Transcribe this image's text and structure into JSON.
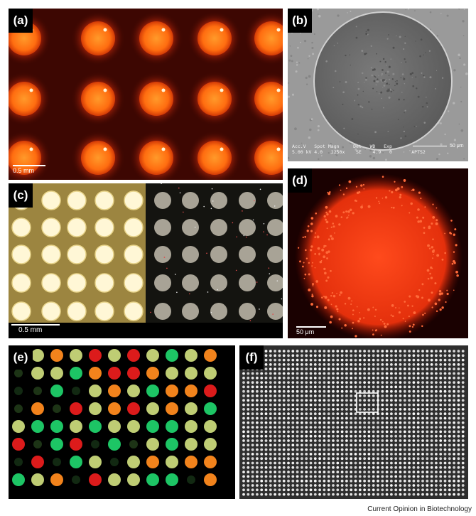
{
  "panels": {
    "a": {
      "label": "(a)",
      "scale": "0.5 mm"
    },
    "b": {
      "label": "(b)",
      "scale": "50 μm",
      "sem_header": "Acc.V   Spot Magn     Det   WD   Exp",
      "sem_values": "5.00 kV 4.0   1250x    SE    4.9   0       APTS2"
    },
    "c": {
      "label": "(c)",
      "scale": "0.5 mm"
    },
    "d": {
      "label": "(d)",
      "scale": "50 μm"
    },
    "e": {
      "label": "(e)"
    },
    "f": {
      "label": "(f)"
    }
  },
  "credit": "Current Opinion in Biotechnology",
  "colors": {
    "spot_orange": "#ff8a1e",
    "spot_green": "#1fd06a",
    "spot_red": "#e81c1c",
    "spot_yellow": "#c9d87a",
    "background_red": "#4a0c04"
  }
}
